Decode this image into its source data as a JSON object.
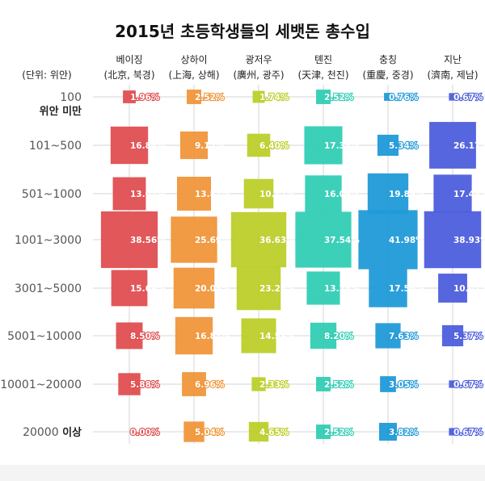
{
  "chart_data": {
    "type": "scatter",
    "subtype": "proportional-square-matrix",
    "title": "2015년 초등학생들의 세뱃돈 총수입",
    "unit_label": "(단위: 위안)",
    "columns": [
      {
        "name": "베이징",
        "sub": "(北京, 북경)",
        "color": "#e04e50"
      },
      {
        "name": "상하이",
        "sub": "(上海, 상해)",
        "color": "#f0963a"
      },
      {
        "name": "광저우",
        "sub": "(廣州, 광주)",
        "color": "#bccf2a"
      },
      {
        "name": "톈진",
        "sub": "(天津, 천진)",
        "color": "#31cdb5"
      },
      {
        "name": "충칭",
        "sub": "(重慶, 중경)",
        "color": "#209ad8"
      },
      {
        "name": "지난",
        "sub": "(濟南, 제남)",
        "color": "#4d5edc"
      }
    ],
    "rows": [
      {
        "label": "100",
        "label2": "위안 미만"
      },
      {
        "label": "101~500"
      },
      {
        "label": "501~1000"
      },
      {
        "label": "1001~3000"
      },
      {
        "label": "3001~5000"
      },
      {
        "label": "5001~10000"
      },
      {
        "label": "10001~20000"
      },
      {
        "label": "20000",
        "label2_inline": "이상"
      }
    ],
    "series": [
      {
        "name": "베이징",
        "values": [
          1.96,
          16.84,
          13.07,
          38.56,
          15.69,
          8.5,
          5.88,
          0.0
        ]
      },
      {
        "name": "상하이",
        "values": [
          2.52,
          9.12,
          13.81,
          25.69,
          20.05,
          16.81,
          6.96,
          5.04
        ]
      },
      {
        "name": "광저우",
        "values": [
          1.74,
          6.4,
          10.47,
          36.63,
          23.26,
          14.53,
          2.33,
          4.65
        ]
      },
      {
        "name": "톈진",
        "values": [
          2.52,
          17.35,
          16.09,
          37.54,
          13.25,
          8.2,
          2.52,
          2.52
        ]
      },
      {
        "name": "충칭",
        "values": [
          0.76,
          5.34,
          19.85,
          41.98,
          17.56,
          7.63,
          3.05,
          3.82
        ]
      },
      {
        "name": "지난",
        "values": [
          0.67,
          26.17,
          17.45,
          38.93,
          10.07,
          5.37,
          0.67,
          0.67
        ]
      }
    ],
    "value_suffix": "%",
    "grid": true
  }
}
